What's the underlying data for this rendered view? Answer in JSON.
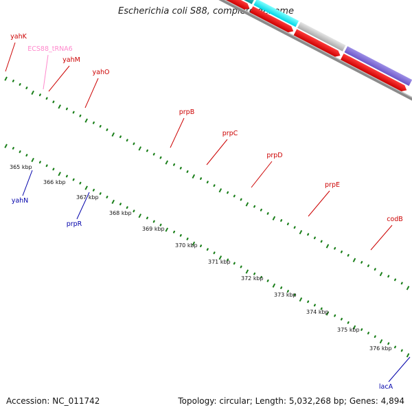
{
  "title": "Escherichia coli S88, complete genome",
  "footer": {
    "accession": "Accession: NC_011742",
    "summary": "Topology: circular; Length: 5,032,268 bp; Genes: 4,894"
  },
  "colors": {
    "label_red": "#cc0000",
    "label_blue": "#0000aa",
    "label_pink": "#ff88cc",
    "backbone": "#888888",
    "tick": "#1a7f1a"
  },
  "kbp_labels": [
    "365 kbp",
    "366 kbp",
    "367 kbp",
    "368 kbp",
    "369 kbp",
    "370 kbp",
    "371 kbp",
    "372 kbp",
    "373 kbp",
    "374 kbp",
    "375 kbp",
    "376 kbp"
  ],
  "gene_labels": [
    {
      "name": "yahK",
      "color": "red"
    },
    {
      "name": "ECS88_tRNA6",
      "color": "pink"
    },
    {
      "name": "yahM",
      "color": "red"
    },
    {
      "name": "yahO",
      "color": "red"
    },
    {
      "name": "prpB",
      "color": "red"
    },
    {
      "name": "prpC",
      "color": "red"
    },
    {
      "name": "prpD",
      "color": "red"
    },
    {
      "name": "prpE",
      "color": "red"
    },
    {
      "name": "codB",
      "color": "red"
    },
    {
      "name": "yahN",
      "color": "blue"
    },
    {
      "name": "prpR",
      "color": "blue"
    },
    {
      "name": "lacA",
      "color": "blue"
    }
  ]
}
